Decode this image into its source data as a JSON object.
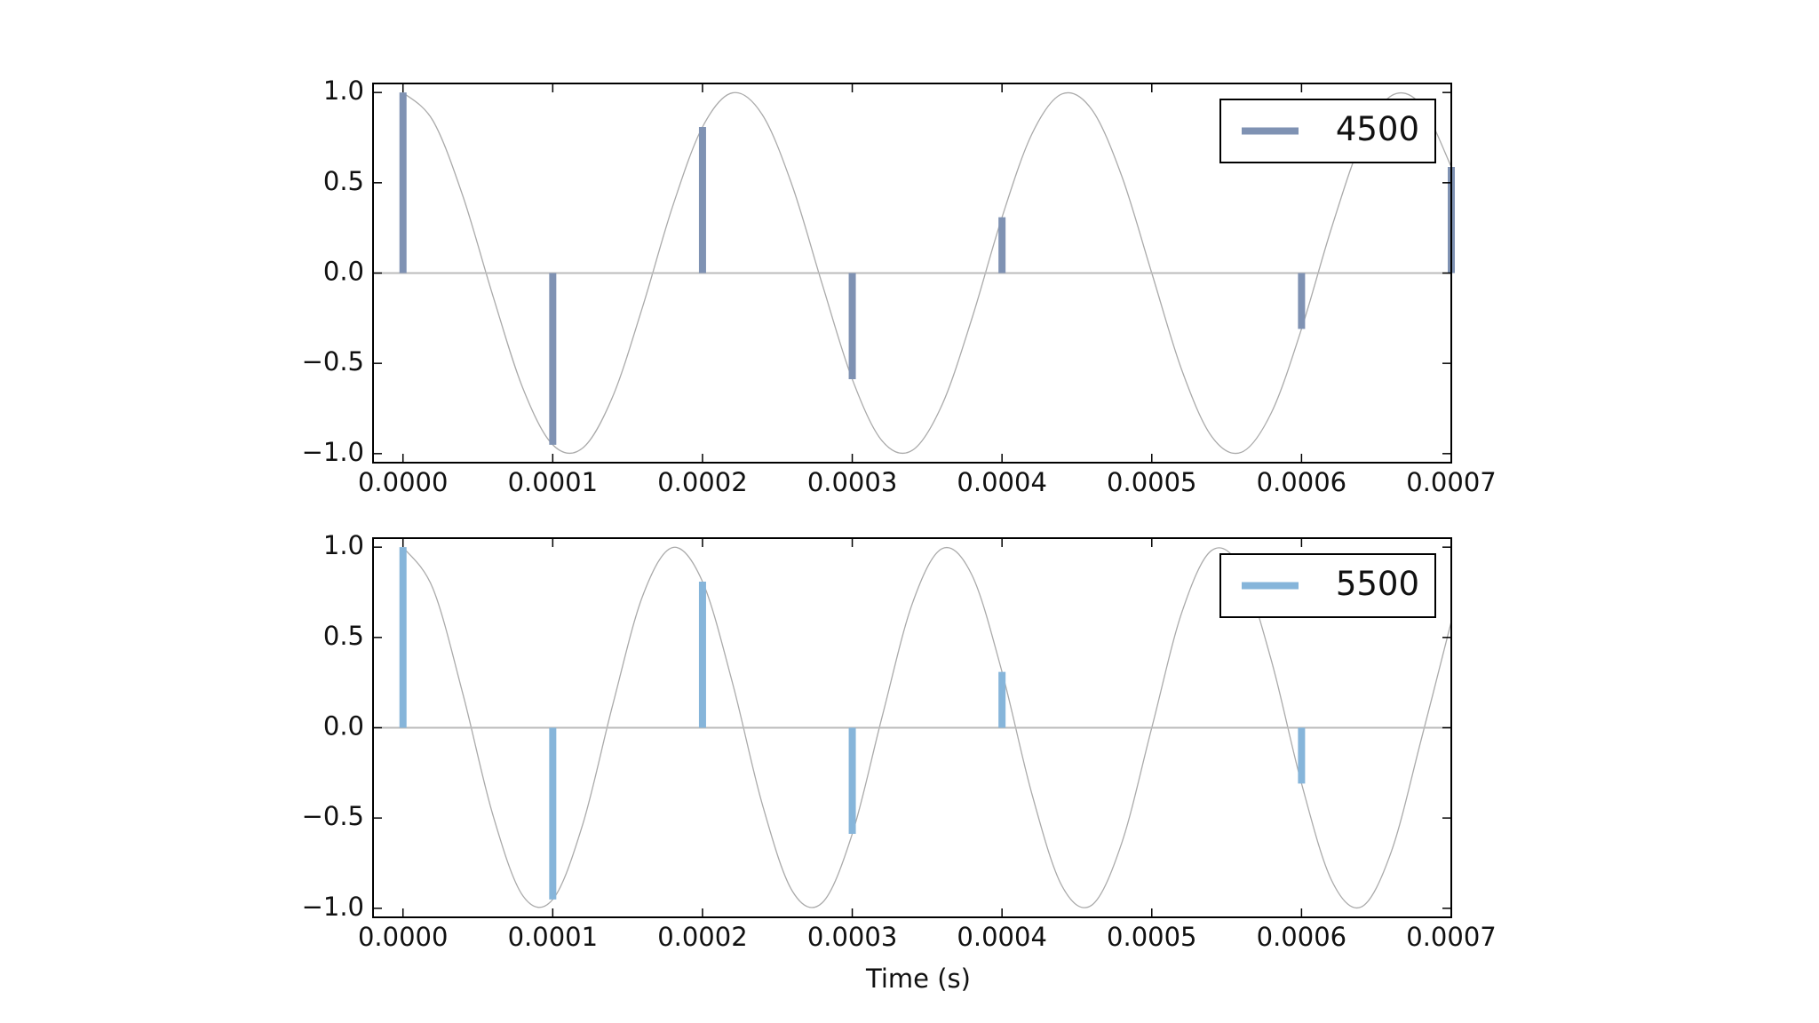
{
  "chart_data": [
    {
      "type": "stem",
      "legend": "upper right",
      "series": [
        {
          "name": "4500",
          "color": "#7f92b3",
          "x": [
            0,
            0.0001,
            0.0002,
            0.0003,
            0.0004,
            0.0005,
            0.0006,
            0.0007
          ],
          "values": [
            1,
            -0.951,
            0.809,
            -0.588,
            0.309,
            0,
            -0.309,
            0.588
          ]
        }
      ],
      "curve": {
        "color": "#aaaaaa",
        "x": [
          0,
          2e-05,
          4e-05,
          6e-05,
          8e-05,
          0.0001,
          0.00012,
          0.00014,
          0.00016,
          0.00018,
          0.0002,
          0.00022,
          0.00024,
          0.00026,
          0.00028,
          0.0003,
          0.00032,
          0.00034,
          0.00036,
          0.00038,
          0.0004,
          0.00042,
          0.00044,
          0.00046,
          0.00048,
          0.0005,
          0.00052,
          0.00054,
          0.00056,
          0.00058,
          0.0006,
          0.00062,
          0.00064,
          0.00066,
          0.00068,
          0.0007
        ],
        "values": [
          1,
          0.844,
          0.426,
          -0.125,
          -0.637,
          -0.951,
          -0.969,
          -0.685,
          -0.187,
          0.368,
          0.809,
          0.998,
          0.876,
          0.482,
          -0.063,
          -0.588,
          -0.93,
          -0.982,
          -0.729,
          -0.249,
          0.309,
          0.771,
          0.992,
          0.905,
          0.536,
          0,
          -0.536,
          -0.905,
          -0.992,
          -0.771,
          -0.309,
          0.249,
          0.729,
          0.982,
          0.93,
          0.588
        ]
      },
      "xlim": [
        -2e-05,
        0.0007
      ],
      "xticks": [
        {
          "value": 0,
          "label": "0.0000"
        },
        {
          "value": 0.0001,
          "label": "0.0001"
        },
        {
          "value": 0.0002,
          "label": "0.0002"
        },
        {
          "value": 0.0003,
          "label": "0.0003"
        },
        {
          "value": 0.0004,
          "label": "0.0004"
        },
        {
          "value": 0.0005,
          "label": "0.0005"
        },
        {
          "value": 0.0006,
          "label": "0.0006"
        },
        {
          "value": 0.0007,
          "label": "0.0007"
        }
      ],
      "ylim": [
        -1.05,
        1.05
      ],
      "yticks": [
        {
          "value": -1,
          "label": "−1.0"
        },
        {
          "value": -0.5,
          "label": "−0.5"
        },
        {
          "value": 0,
          "label": "0.0"
        },
        {
          "value": 0.5,
          "label": "0.5"
        },
        {
          "value": 1,
          "label": "1.0"
        }
      ]
    },
    {
      "type": "stem",
      "legend": "upper right",
      "x_label": "Time (s)",
      "series": [
        {
          "name": "5500",
          "color": "#86b5da",
          "x": [
            0,
            0.0001,
            0.0002,
            0.0003,
            0.0004,
            0.0005,
            0.0006
          ],
          "values": [
            1,
            -0.951,
            0.809,
            -0.588,
            0.309,
            0,
            -0.309
          ]
        }
      ],
      "curve": {
        "color": "#aaaaaa",
        "x": [
          0,
          2e-05,
          4e-05,
          6e-05,
          8e-05,
          0.0001,
          0.00012,
          0.00014,
          0.00016,
          0.00018,
          0.0002,
          0.00022,
          0.00024,
          0.00026,
          0.00028,
          0.0003,
          0.00032,
          0.00034,
          0.00036,
          0.00038,
          0.0004,
          0.00042,
          0.00044,
          0.00046,
          0.00048,
          0.0005,
          0.00052,
          0.00054,
          0.00056,
          0.00058,
          0.0006,
          0.00062,
          0.00064,
          0.00066,
          0.00068,
          0.0007
        ],
        "values": [
          1,
          0.771,
          0.187,
          -0.482,
          -0.93,
          -0.951,
          -0.536,
          0.125,
          0.729,
          0.998,
          0.809,
          0.249,
          -0.426,
          -0.905,
          -0.969,
          -0.588,
          0.063,
          0.685,
          0.992,
          0.844,
          0.309,
          -0.368,
          -0.876,
          -0.982,
          -0.637,
          0,
          0.637,
          0.982,
          0.876,
          0.368,
          -0.309,
          -0.844,
          -0.992,
          -0.685,
          -0.063,
          0.588
        ]
      },
      "xlim": [
        -2e-05,
        0.0007
      ],
      "xticks": [
        {
          "value": 0,
          "label": "0.0000"
        },
        {
          "value": 0.0001,
          "label": "0.0001"
        },
        {
          "value": 0.0002,
          "label": "0.0002"
        },
        {
          "value": 0.0003,
          "label": "0.0003"
        },
        {
          "value": 0.0004,
          "label": "0.0004"
        },
        {
          "value": 0.0005,
          "label": "0.0005"
        },
        {
          "value": 0.0006,
          "label": "0.0006"
        },
        {
          "value": 0.0007,
          "label": "0.0007"
        }
      ],
      "ylim": [
        -1.05,
        1.05
      ],
      "yticks": [
        {
          "value": -1,
          "label": "−1.0"
        },
        {
          "value": -0.5,
          "label": "−0.5"
        },
        {
          "value": 0,
          "label": "0.0"
        },
        {
          "value": 0.5,
          "label": "0.5"
        },
        {
          "value": 1,
          "label": "1.0"
        }
      ]
    }
  ]
}
